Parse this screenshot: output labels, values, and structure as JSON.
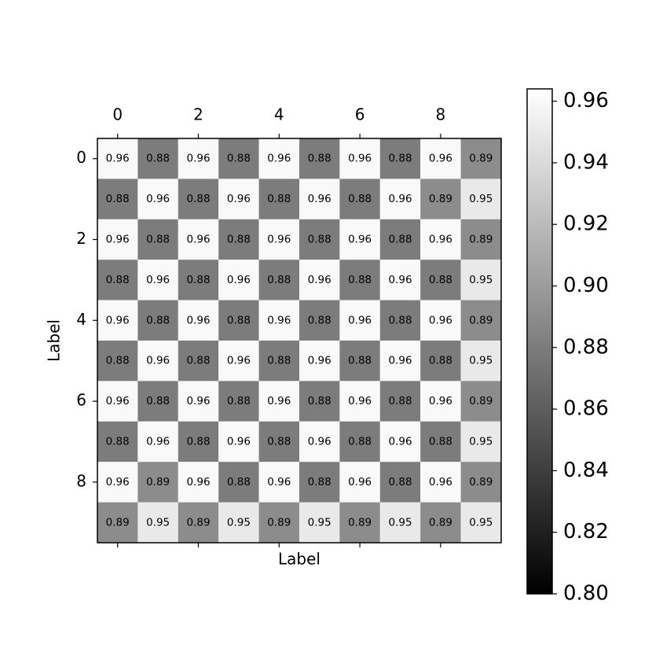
{
  "chart_data": {
    "type": "heatmap",
    "xlabel": "Label",
    "ylabel": "Label",
    "cmap": "gray",
    "xlim": [
      -0.5,
      9.5
    ],
    "ylim": [
      9.5,
      -0.5
    ],
    "xticks": [
      0,
      2,
      4,
      6,
      8
    ],
    "yticks": [
      0,
      2,
      4,
      6,
      8
    ],
    "z": [
      [
        0.96,
        0.88,
        0.96,
        0.88,
        0.96,
        0.88,
        0.96,
        0.88,
        0.96,
        0.89
      ],
      [
        0.88,
        0.96,
        0.88,
        0.96,
        0.88,
        0.96,
        0.88,
        0.96,
        0.89,
        0.95
      ],
      [
        0.96,
        0.88,
        0.96,
        0.88,
        0.96,
        0.88,
        0.96,
        0.88,
        0.96,
        0.89
      ],
      [
        0.88,
        0.96,
        0.88,
        0.96,
        0.88,
        0.96,
        0.88,
        0.96,
        0.88,
        0.95
      ],
      [
        0.96,
        0.88,
        0.96,
        0.88,
        0.96,
        0.88,
        0.96,
        0.88,
        0.96,
        0.89
      ],
      [
        0.88,
        0.96,
        0.88,
        0.96,
        0.88,
        0.96,
        0.88,
        0.96,
        0.88,
        0.95
      ],
      [
        0.96,
        0.88,
        0.96,
        0.88,
        0.96,
        0.88,
        0.96,
        0.88,
        0.96,
        0.89
      ],
      [
        0.88,
        0.96,
        0.88,
        0.96,
        0.88,
        0.96,
        0.88,
        0.96,
        0.88,
        0.95
      ],
      [
        0.96,
        0.89,
        0.96,
        0.88,
        0.96,
        0.88,
        0.96,
        0.88,
        0.96,
        0.89
      ],
      [
        0.89,
        0.95,
        0.89,
        0.95,
        0.89,
        0.95,
        0.89,
        0.95,
        0.89,
        0.95
      ]
    ],
    "clim": [
      0.8,
      0.964
    ],
    "cticks": [
      {
        "value": 0.8,
        "label": "0.80"
      },
      0.82,
      0.84,
      0.86,
      0.88,
      {
        "value": 0.9,
        "label": "0.90"
      },
      0.92,
      0.94,
      0.96
    ]
  }
}
